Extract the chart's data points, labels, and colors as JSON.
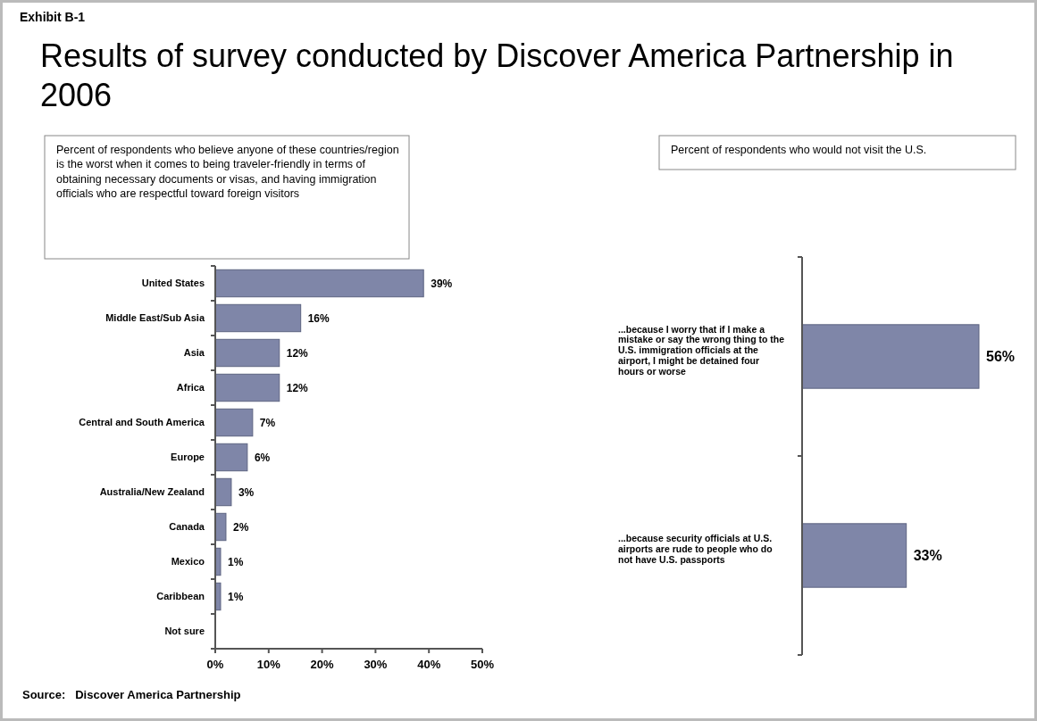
{
  "chart_data": [
    {
      "type": "bar",
      "orientation": "horizontal",
      "title": "Results of survey conducted by Discover America Partnership in 2006",
      "subtitle": "Percent of respondents who believe anyone of these countries/region is the worst when it comes to being traveler-friendly in terms of obtaining necessary documents or visas, and having immigration officials who are respectful toward foreign visitors",
      "categories": [
        "United States",
        "Middle East/Sub Asia",
        "Asia",
        "Africa",
        "Central and South America",
        "Europe",
        "Australia/New Zealand",
        "Canada",
        "Mexico",
        "Caribbean",
        "Not sure"
      ],
      "values": [
        39,
        16,
        12,
        12,
        7,
        6,
        3,
        2,
        1,
        1,
        null
      ],
      "value_labels": [
        "39%",
        "16%",
        "12%",
        "12%",
        "7%",
        "6%",
        "3%",
        "2%",
        "1%",
        "1%",
        null
      ],
      "color": "#7f86a8",
      "xlim": [
        0,
        50
      ],
      "xticks": [
        {
          "value": 0,
          "label": "0%"
        },
        {
          "value": 10,
          "label": "10%"
        },
        {
          "value": 20,
          "label": "20%"
        },
        {
          "value": 30,
          "label": "30%"
        },
        {
          "value": 40,
          "label": "40%"
        },
        {
          "value": 50,
          "label": "50%"
        }
      ],
      "annotations": [
        "Exhibit B-1",
        "Source:   Discover America Partnership"
      ]
    },
    {
      "type": "bar",
      "orientation": "horizontal",
      "title": "Percent of respondents who would not visit the U.S.",
      "categories": [
        "...because I worry that if I make a mistake or say the wrong thing to the U.S. immigration officials at the airport, I might be detained four hours or worse",
        "...because security officials at U.S. airports are rude to people who do not have U.S. passports"
      ],
      "values": [
        56,
        33
      ],
      "value_labels": [
        "56%",
        "33%"
      ],
      "color": "#7f86a8"
    }
  ]
}
